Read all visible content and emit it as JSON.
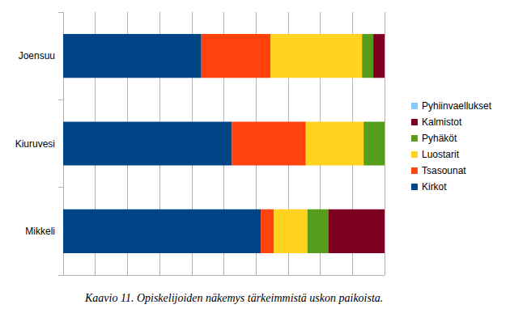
{
  "chart_data": {
    "type": "bar",
    "orientation": "horizontal",
    "stacked": true,
    "title": "Kaavio 11. Opiskelijoiden näkemys tärkeimmistä uskon paikoista.",
    "categories": [
      "Joensuu",
      "Kiuruvesi",
      "Mikkeli"
    ],
    "series": [
      {
        "name": "Kirkot",
        "color": "#004586",
        "values": [
          43,
          52.5,
          61.5
        ]
      },
      {
        "name": "Tsasounat",
        "color": "#ff420e",
        "values": [
          21.5,
          23,
          4
        ]
      },
      {
        "name": "Luostarit",
        "color": "#ffd320",
        "values": [
          28.5,
          18,
          10.5
        ]
      },
      {
        "name": "Pyhäköt",
        "color": "#579d1c",
        "values": [
          3.5,
          6.5,
          6.5
        ]
      },
      {
        "name": "Kalmistot",
        "color": "#7e0021",
        "values": [
          3.5,
          0,
          17.5
        ]
      },
      {
        "name": "Pyhiinvaellukset",
        "color": "#83caff",
        "values": [
          0,
          0,
          0
        ]
      }
    ],
    "xlim": [
      0,
      100
    ],
    "xticks": [
      0,
      10,
      20,
      30,
      40,
      50,
      60,
      70,
      80,
      90,
      100
    ],
    "grid": true,
    "legend": "right",
    "tick_labels": "y"
  }
}
